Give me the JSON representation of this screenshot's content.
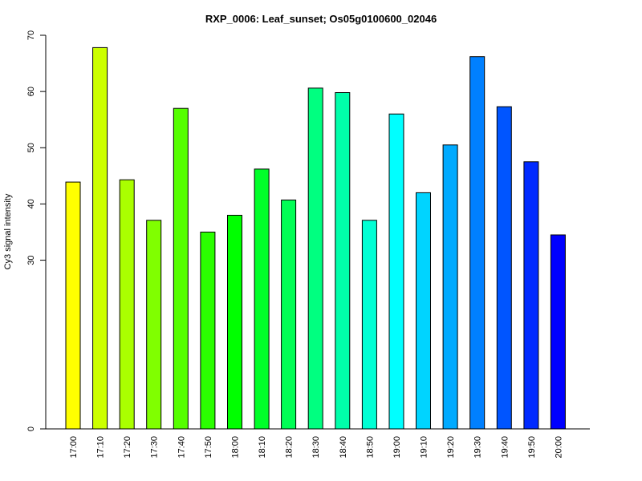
{
  "chart_data": {
    "type": "bar",
    "title": "RXP_0006: Leaf_sunset; Os05g0100600_02046",
    "xlabel": "",
    "ylabel": "Cy3 signal intensity",
    "categories": [
      "17:00",
      "17:10",
      "17:20",
      "17:30",
      "17:40",
      "17:50",
      "18:00",
      "18:10",
      "18:20",
      "18:30",
      "18:40",
      "18:50",
      "19:00",
      "19:10",
      "19:20",
      "19:30",
      "19:40",
      "19:50",
      "20:00"
    ],
    "values": [
      43.9,
      67.8,
      44.3,
      37.1,
      57.0,
      35.0,
      38.0,
      46.2,
      40.7,
      60.6,
      59.8,
      37.1,
      56.0,
      42.0,
      50.5,
      66.2,
      57.3,
      47.5,
      34.5
    ],
    "colors": [
      "#FFFF00",
      "#CCFF00",
      "#AAFF00",
      "#80FF00",
      "#55FF00",
      "#2BFF00",
      "#00FF00",
      "#00FF2A",
      "#00FF55",
      "#00FF80",
      "#00FFAA",
      "#00FFD4",
      "#00FFFF",
      "#00D4FF",
      "#00AAFF",
      "#0080FF",
      "#0055FF",
      "#002AFF",
      "#0000FF"
    ],
    "yticks": [
      0,
      30,
      40,
      50,
      60,
      70
    ],
    "ylim": [
      0,
      70
    ],
    "grid": false,
    "legend": "none"
  }
}
